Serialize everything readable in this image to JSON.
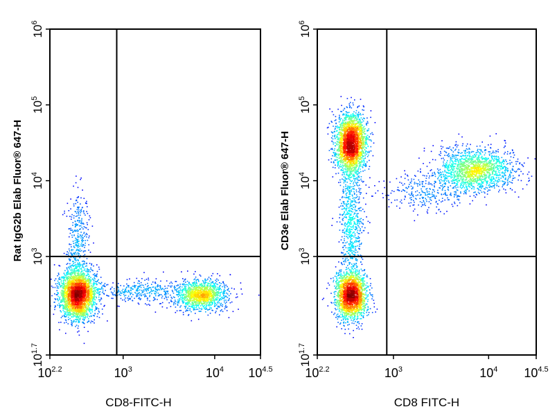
{
  "chart_data": [
    {
      "type": "scatter",
      "panel": "left",
      "scale": "log10",
      "xlabel": "CD8-FITC-H",
      "ylabel": "Rat IgG2b Elab Fluor® 647-H",
      "xlim_log10": [
        2.2,
        4.5
      ],
      "ylim_log10": [
        1.7,
        6
      ],
      "x_ticks": [
        {
          "base": "10",
          "exp": "2.2",
          "value_log10": 2.2
        },
        {
          "base": "10",
          "exp": "3",
          "value_log10": 3
        },
        {
          "base": "10",
          "exp": "4",
          "value_log10": 4
        },
        {
          "base": "10",
          "exp": "4.5",
          "value_log10": 4.5
        }
      ],
      "y_ticks": [
        {
          "base": "10",
          "exp": "1.7",
          "value_log10": 1.7
        },
        {
          "base": "10",
          "exp": "3",
          "value_log10": 3
        },
        {
          "base": "10",
          "exp": "4",
          "value_log10": 4
        },
        {
          "base": "10",
          "exp": "5",
          "value_log10": 5
        },
        {
          "base": "10",
          "exp": "6",
          "value_log10": 6
        }
      ],
      "quadrant_gate_log10": {
        "x": 2.93,
        "y": 3.0
      },
      "populations": [
        {
          "name": "CD8-negative",
          "center_log10": [
            2.5,
            2.5
          ],
          "sd_log10": [
            0.1,
            0.16
          ],
          "count": 2800
        },
        {
          "name": "CD8-negative tail",
          "center_log10": [
            2.5,
            3.2
          ],
          "sd_log10": [
            0.06,
            0.35
          ],
          "count": 380
        },
        {
          "name": "CD8-positive",
          "center_log10": [
            3.85,
            2.5
          ],
          "sd_log10": [
            0.14,
            0.1
          ],
          "count": 1300
        },
        {
          "name": "bridge",
          "center_log10": [
            3.2,
            2.55
          ],
          "sd_log10": [
            0.22,
            0.08
          ],
          "count": 350
        }
      ]
    },
    {
      "type": "scatter",
      "panel": "right",
      "scale": "log10",
      "xlabel": "CD8 FITC-H",
      "ylabel": "CD3e Elab Fluor® 647-H",
      "xlim_log10": [
        2.2,
        4.5
      ],
      "ylim_log10": [
        1.7,
        6
      ],
      "x_ticks": [
        {
          "base": "10",
          "exp": "2.2",
          "value_log10": 2.2
        },
        {
          "base": "10",
          "exp": "3",
          "value_log10": 3
        },
        {
          "base": "10",
          "exp": "4",
          "value_log10": 4
        },
        {
          "base": "10",
          "exp": "4.5",
          "value_log10": 4.5
        }
      ],
      "y_ticks": [
        {
          "base": "10",
          "exp": "1.7",
          "value_log10": 1.7
        },
        {
          "base": "10",
          "exp": "3",
          "value_log10": 3
        },
        {
          "base": "10",
          "exp": "4",
          "value_log10": 4
        },
        {
          "base": "10",
          "exp": "5",
          "value_log10": 5
        },
        {
          "base": "10",
          "exp": "6",
          "value_log10": 6
        }
      ],
      "quadrant_gate_log10": {
        "x": 2.93,
        "y": 3.0
      },
      "populations": [
        {
          "name": "CD3+ CD8-",
          "center_log10": [
            2.55,
            4.5
          ],
          "sd_log10": [
            0.08,
            0.2
          ],
          "count": 2400
        },
        {
          "name": "CD3- CD8-",
          "center_log10": [
            2.55,
            2.5
          ],
          "sd_log10": [
            0.08,
            0.16
          ],
          "count": 2100
        },
        {
          "name": "vertical bridge",
          "center_log10": [
            2.55,
            3.5
          ],
          "sd_log10": [
            0.06,
            0.4
          ],
          "count": 650
        },
        {
          "name": "CD3+ CD8+",
          "center_log10": [
            3.85,
            4.15
          ],
          "sd_log10": [
            0.2,
            0.14
          ],
          "count": 1600
        },
        {
          "name": "diagonal bridge",
          "center_log10": [
            3.35,
            3.85
          ],
          "sd_log10": [
            0.25,
            0.12
          ],
          "count": 300
        }
      ]
    }
  ]
}
